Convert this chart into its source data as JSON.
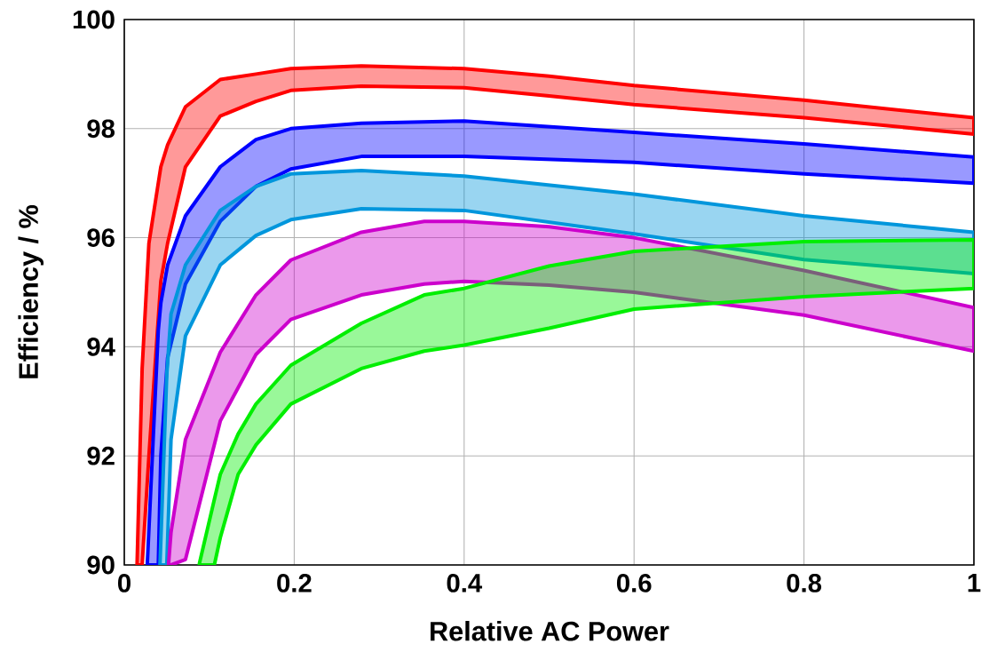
{
  "chart_data": {
    "type": "line",
    "xlabel": "Relative AC Power",
    "ylabel": "Efficiency / %",
    "xlim": [
      0,
      1
    ],
    "ylim": [
      90,
      100
    ],
    "xticks": [
      0,
      0.2,
      0.4,
      0.6,
      0.8,
      1
    ],
    "yticks": [
      90,
      92,
      94,
      96,
      98,
      100
    ],
    "grid": true,
    "series": [
      {
        "color": "#ff0000",
        "x": [
          0.015,
          0.021,
          0.029,
          0.043,
          0.051,
          0.072,
          0.113,
          0.155,
          0.196,
          0.279,
          0.4,
          0.5,
          0.6,
          0.8,
          1
        ],
        "values": [
          null,
          null,
          null,
          null,
          null,
          null,
          null,
          null,
          null,
          null,
          null,
          null,
          null,
          null,
          null
        ],
        "upper": [
          90,
          93.6,
          95.9,
          97.3,
          97.7,
          98.4,
          98.9,
          99.0,
          99.1,
          99.15,
          99.1,
          98.96,
          98.79,
          98.52,
          98.2
        ],
        "lower": [
          90,
          90,
          92,
          95.2,
          95.9,
          97.3,
          98.23,
          98.5,
          98.7,
          98.78,
          98.75,
          98.6,
          98.44,
          98.2,
          97.9
        ]
      },
      {
        "color": "#0000ff",
        "x": [
          0.027,
          0.04,
          0.043,
          0.051,
          0.072,
          0.113,
          0.155,
          0.196,
          0.279,
          0.4,
          0.6,
          0.8,
          1
        ],
        "values": [
          null,
          null,
          null,
          null,
          null,
          null,
          null,
          null,
          null,
          null,
          null,
          null,
          null
        ],
        "upper": [
          90,
          94.3,
          94.8,
          95.5,
          96.4,
          97.3,
          97.8,
          98.0,
          98.1,
          98.14,
          97.93,
          97.72,
          97.48
        ],
        "lower": [
          90,
          90,
          92,
          93.8,
          95.15,
          96.3,
          96.94,
          97.26,
          97.49,
          97.49,
          97.38,
          97.17,
          97.0
        ]
      },
      {
        "color": "#0096dc",
        "x": [
          0.042,
          0.05,
          0.055,
          0.072,
          0.113,
          0.155,
          0.196,
          0.279,
          0.4,
          0.6,
          0.8,
          1
        ],
        "values": [
          null,
          null,
          null,
          null,
          null,
          null,
          null,
          null,
          null,
          null,
          null,
          null
        ],
        "upper": [
          90,
          93.5,
          94.6,
          95.5,
          96.5,
          96.94,
          97.17,
          97.23,
          97.13,
          96.8,
          96.4,
          96.1
        ],
        "lower": [
          90,
          90,
          92.3,
          94.2,
          95.5,
          96.04,
          96.33,
          96.53,
          96.5,
          96.07,
          95.6,
          95.34
        ]
      },
      {
        "color": "#cc00cc",
        "x": [
          0.052,
          0.055,
          0.072,
          0.113,
          0.155,
          0.196,
          0.279,
          0.353,
          0.4,
          0.5,
          0.6,
          0.8,
          1
        ],
        "values": [
          null,
          null,
          null,
          null,
          null,
          null,
          null,
          null,
          null,
          null,
          null,
          null,
          null
        ],
        "upper": [
          90,
          90.6,
          92.3,
          93.9,
          94.95,
          95.59,
          96.1,
          96.3,
          96.3,
          96.2,
          96.0,
          95.4,
          94.72
        ],
        "lower": [
          90,
          90,
          90.1,
          92.64,
          93.86,
          94.5,
          94.95,
          95.15,
          95.2,
          95.13,
          95.0,
          94.58,
          93.92
        ]
      },
      {
        "color": "#00ee00",
        "x": [
          0.088,
          0.106,
          0.113,
          0.134,
          0.155,
          0.196,
          0.279,
          0.353,
          0.4,
          0.5,
          0.6,
          0.8,
          1
        ],
        "values": [
          null,
          null,
          null,
          null,
          null,
          null,
          null,
          null,
          null,
          null,
          null,
          null,
          null
        ],
        "upper": [
          90,
          91.2,
          91.66,
          92.4,
          92.95,
          93.66,
          94.43,
          94.95,
          95.07,
          95.48,
          95.75,
          95.93,
          95.96
        ],
        "lower": [
          90,
          90,
          90.5,
          91.66,
          92.2,
          92.95,
          93.6,
          93.92,
          94.03,
          94.34,
          94.69,
          94.92,
          95.07
        ]
      }
    ]
  }
}
